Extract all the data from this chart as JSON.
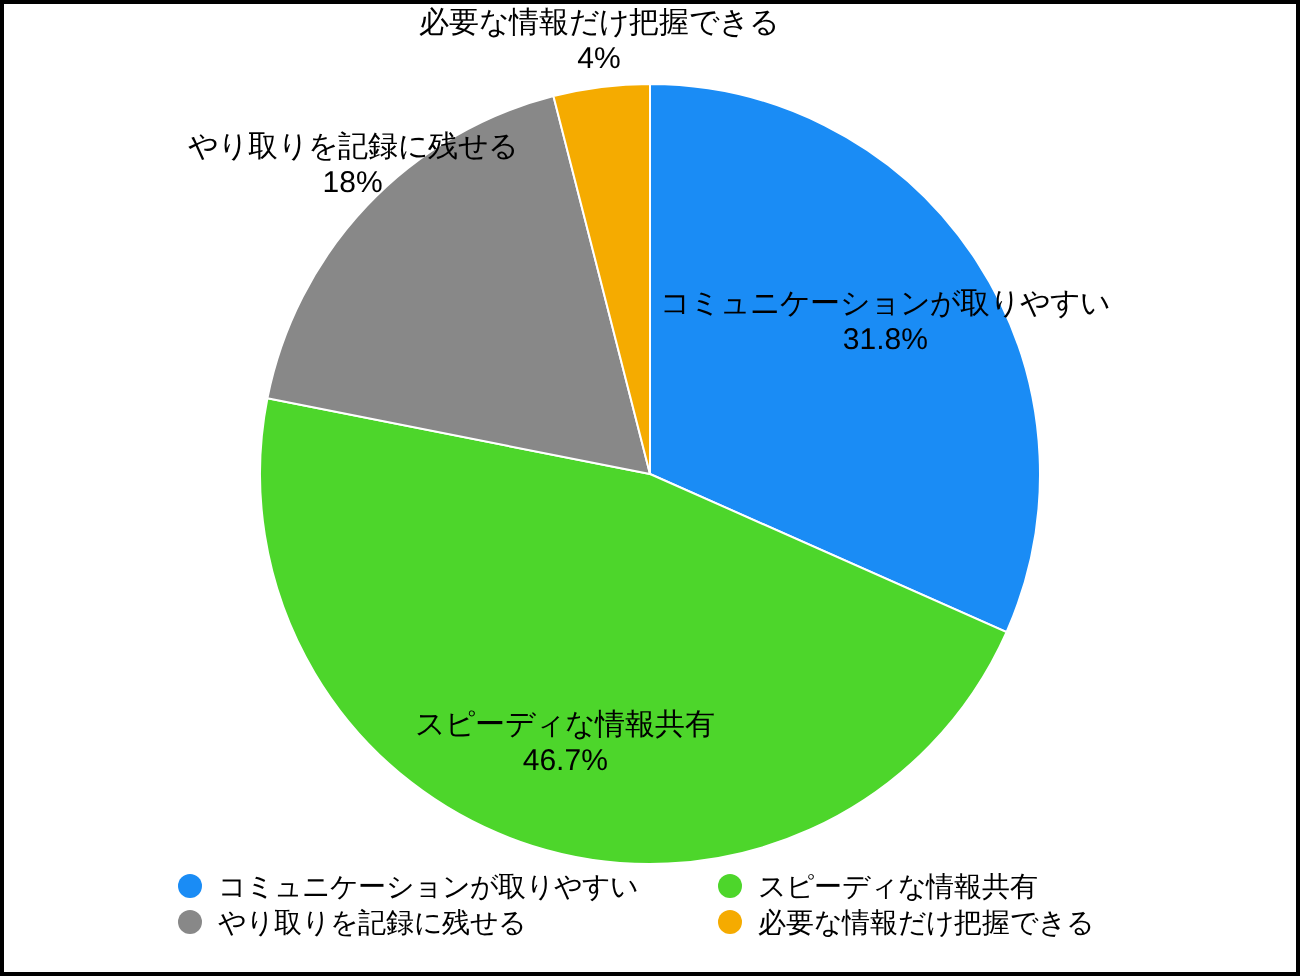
{
  "chart_data": {
    "type": "pie",
    "categories": [
      "コミュニケーションが取りやすい",
      "スピーディな情報共有",
      "やり取りを記録に残せる",
      "必要な情報だけ把握できる"
    ],
    "values": [
      31.8,
      46.7,
      18,
      4
    ],
    "colors": [
      "#1a8cf5",
      "#4dd62b",
      "#888888",
      "#f5ab00"
    ],
    "value_labels": [
      "31.8%",
      "46.7%",
      "18%",
      "4%"
    ],
    "legend": "bottom"
  }
}
